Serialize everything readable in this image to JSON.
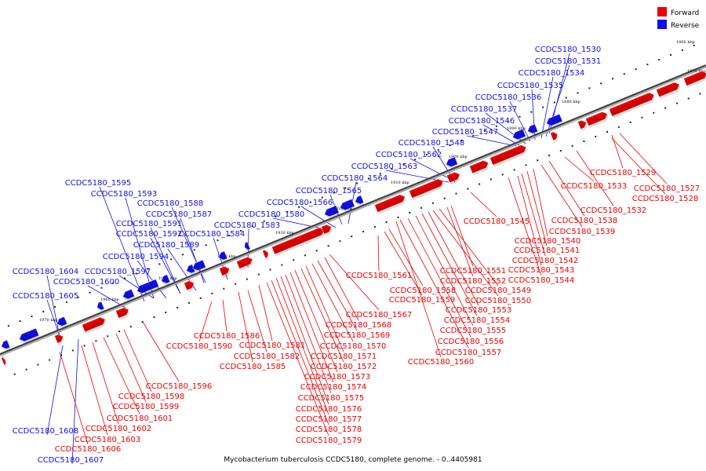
{
  "legend": [
    {
      "label": "Forward",
      "color": "#ee0000"
    },
    {
      "label": "Reverse",
      "color": "#1010ee"
    }
  ],
  "colors": {
    "forward": "#ee0000",
    "reverse": "#1010ee",
    "axis": "#888888"
  },
  "caption": "Mycobacterium tuberculosis CCDC5180, complete genome. - 0..4405981",
  "ticks": [
    "1860 kbp",
    "1870 kbp",
    "1880 kbp",
    "1890 kbp",
    "1900 kbp",
    "1910 kbp",
    "1920 kbp",
    "1930 kbp",
    "1940 kbp",
    "1950 kbp",
    "1960 kbp",
    "1970 kbp"
  ],
  "reverse_labels": [
    "CCDC5180_1530",
    "CCDC5180_1531",
    "CCDC5180_1534",
    "CCDC5180_1535",
    "CCDC5180_1536",
    "CCDC5180_1537",
    "CCDC5180_1546",
    "CCDC5180_1547",
    "CCDC5180_1548",
    "CCDC5180_1562",
    "CCDC5180_1563",
    "CCDC5180_1564",
    "CCDC5180_1565",
    "CCDC5180_1566",
    "CCDC5180_1580",
    "CCDC5180_1583",
    "CCDC5180_1584",
    "CCDC5180_1595",
    "CCDC5180_1593",
    "CCDC5180_1588",
    "CCDC5180_1587",
    "CCDC5180_1591",
    "CCDC5180_1592",
    "CCDC5180_1589",
    "CCDC5180_1594",
    "CCDC5180_1597",
    "CCDC5180_1604",
    "CCDC5180_1600",
    "CCDC5180_1605",
    "CCDC5180_1608",
    "CCDC5180_1607"
  ],
  "forward_labels": [
    "CCDC5180_1529",
    "CCDC5180_1527",
    "CCDC5180_1533",
    "CCDC5180_1528",
    "CCDC5180_1532",
    "CCDC5180_1538",
    "CCDC5180_1539",
    "CCDC5180_1540",
    "CCDC5180_1541",
    "CCDC5180_1542",
    "CCDC5180_1543",
    "CCDC5180_1544",
    "CCDC5180_1545",
    "CCDC5180_1551",
    "CCDC5180_1552",
    "CCDC5180_1549",
    "CCDC5180_1550",
    "CCDC5180_1553",
    "CCDC5180_1554",
    "CCDC5180_1555",
    "CCDC5180_1556",
    "CCDC5180_1557",
    "CCDC5180_1560",
    "CCDC5180_1561",
    "CCDC5180_1558",
    "CCDC5180_1559",
    "CCDC5180_1567",
    "CCDC5180_1568",
    "CCDC5180_1569",
    "CCDC5180_1570",
    "CCDC5180_1571",
    "CCDC5180_1572",
    "CCDC5180_1573",
    "CCDC5180_1574",
    "CCDC5180_1575",
    "CCDC5180_1576",
    "CCDC5180_1577",
    "CCDC5180_1578",
    "CCDC5180_1579",
    "CCDC5180_1581",
    "CCDC5180_1582",
    "CCDC5180_1585",
    "CCDC5180_1586",
    "CCDC5180_1590",
    "CCDC5180_1596",
    "CCDC5180_1598",
    "CCDC5180_1599",
    "CCDC5180_1601",
    "CCDC5180_1602",
    "CCDC5180_1603",
    "CCDC5180_1606"
  ]
}
